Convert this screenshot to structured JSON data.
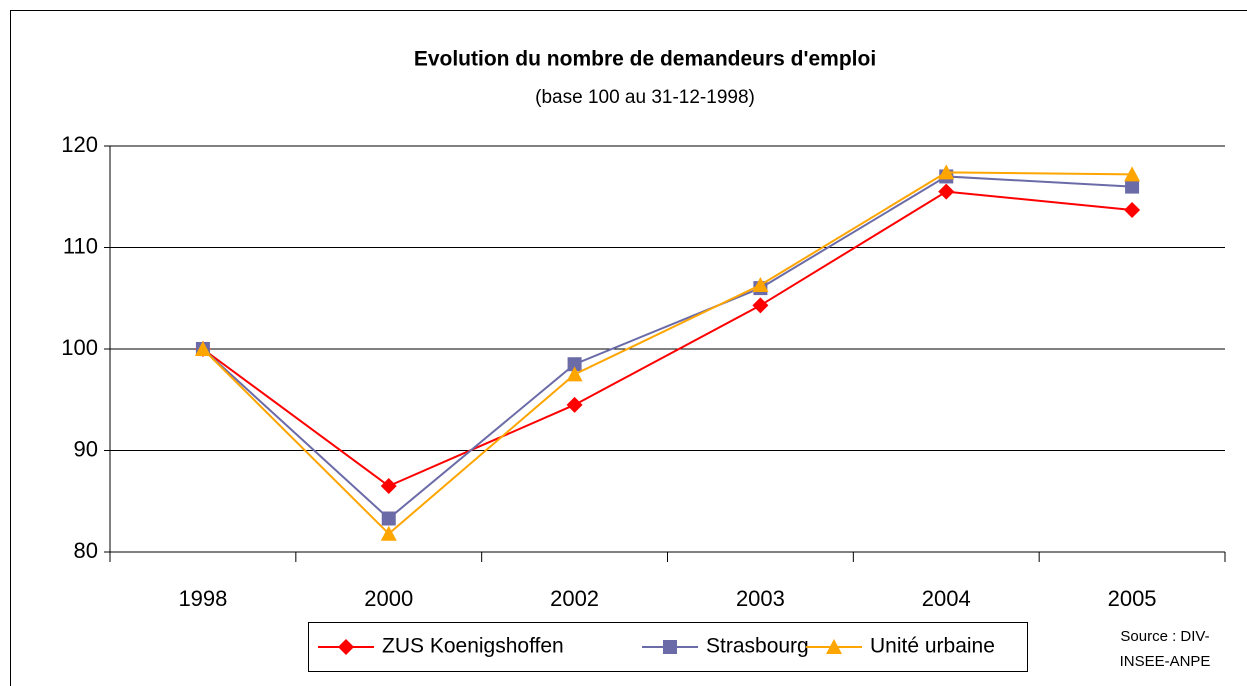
{
  "chart_data": {
    "type": "line",
    "title": "Evolution du nombre de demandeurs d'emploi",
    "subtitle": "(base 100 au 31-12-1998)",
    "categories": [
      "1998",
      "2000",
      "2002",
      "2003",
      "2004",
      "2005"
    ],
    "series": [
      {
        "name": "ZUS Koenigshoffen",
        "color": "#ff0000",
        "marker": "diamond",
        "values": [
          100,
          86.5,
          94.5,
          104.3,
          115.5,
          113.7
        ]
      },
      {
        "name": "Strasbourg",
        "color": "#6b6ba8",
        "marker": "square",
        "values": [
          100,
          83.3,
          98.5,
          106,
          117,
          116
        ]
      },
      {
        "name": "Unité urbaine",
        "color": "#ffa500",
        "marker": "triangle",
        "values": [
          100,
          81.8,
          97.5,
          106.3,
          117.4,
          117.2
        ]
      }
    ],
    "ylim": [
      80,
      120
    ],
    "yticks": [
      80,
      90,
      100,
      110,
      120
    ],
    "grid": true,
    "legend": "bottom",
    "source": [
      "Source : DIV-",
      "INSEE-ANPE"
    ]
  }
}
